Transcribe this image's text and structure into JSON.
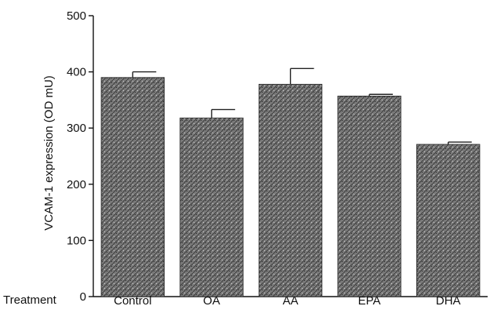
{
  "chart_data": {
    "type": "bar",
    "categories": [
      "Control",
      "OA",
      "AA",
      "EPA",
      "DHA"
    ],
    "values": [
      390,
      318,
      378,
      357,
      271
    ],
    "errors": [
      10,
      15,
      28,
      3,
      4
    ],
    "title": "",
    "xlabel": "Treatment",
    "ylabel": "VCAM-1 expression (OD mU)",
    "ylim": [
      0,
      500
    ],
    "yticks": [
      0,
      100,
      200,
      300,
      400,
      500
    ],
    "grid": false,
    "legend": "none",
    "bar_color": "#6b6b6b"
  }
}
